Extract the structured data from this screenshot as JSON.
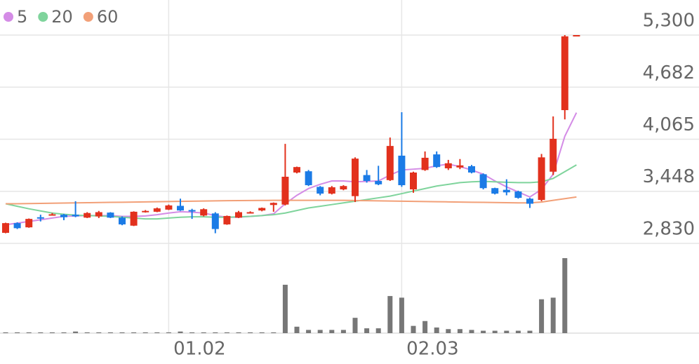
{
  "chart_data": {
    "type": "candlestick",
    "categories": [
      null,
      null,
      null,
      null,
      null,
      null,
      null,
      null,
      null,
      null,
      null,
      null,
      null,
      null,
      "01.02",
      null,
      null,
      null,
      null,
      null,
      null,
      null,
      null,
      null,
      null,
      null,
      null,
      null,
      null,
      null,
      null,
      null,
      null,
      null,
      "02.03",
      null,
      null,
      null,
      null,
      null,
      null,
      null,
      null,
      null,
      null,
      null,
      null,
      null,
      null,
      null
    ],
    "open": [
      2955,
      3070,
      3020,
      3140,
      3165,
      3170,
      3170,
      3135,
      3150,
      3195,
      3135,
      3040,
      3200,
      3205,
      3230,
      3275,
      3225,
      3160,
      3185,
      3055,
      3135,
      3190,
      3220,
      3285,
      3290,
      3670,
      3685,
      3500,
      3420,
      3470,
      3390,
      3640,
      3570,
      3580,
      3870,
      3470,
      3700,
      3885,
      3720,
      3730,
      3745,
      3650,
      3485,
      3465,
      3445,
      3360,
      3345,
      3680,
      4410,
      5285
    ],
    "high": [
      3075,
      3080,
      3125,
      3170,
      3190,
      3180,
      3330,
      3200,
      3215,
      3200,
      3150,
      3210,
      3225,
      3255,
      3290,
      3360,
      3240,
      3245,
      3200,
      3160,
      3215,
      3210,
      3255,
      3315,
      4010,
      3740,
      3700,
      3510,
      3510,
      3520,
      3850,
      3700,
      3750,
      4085,
      4385,
      3680,
      3920,
      3920,
      3820,
      3830,
      3760,
      3660,
      3490,
      3590,
      3455,
      3370,
      3890,
      4335,
      5300,
      5300
    ],
    "low": [
      2950,
      3000,
      3015,
      3090,
      3160,
      3105,
      3140,
      3130,
      3130,
      3130,
      3045,
      3035,
      3195,
      3200,
      3225,
      3215,
      3120,
      3150,
      2950,
      3050,
      3130,
      3185,
      3210,
      3205,
      3280,
      3660,
      3510,
      3400,
      3410,
      3460,
      3320,
      3550,
      3520,
      3570,
      3500,
      3430,
      3690,
      3725,
      3700,
      3710,
      3660,
      3470,
      3410,
      3400,
      3360,
      3250,
      3330,
      3640,
      4300,
      5285
    ],
    "close": [
      3070,
      3010,
      3120,
      3130,
      3175,
      3140,
      3150,
      3190,
      3200,
      3135,
      3055,
      3205,
      3215,
      3245,
      3280,
      3220,
      3215,
      3235,
      3000,
      3155,
      3200,
      3200,
      3250,
      3310,
      3620,
      3735,
      3520,
      3420,
      3495,
      3510,
      3835,
      3570,
      3530,
      3985,
      3520,
      3670,
      3845,
      3735,
      3780,
      3755,
      3670,
      3485,
      3420,
      3435,
      3370,
      3300,
      3850,
      4070,
      5285,
      5300
    ],
    "up_color": "#e2311d",
    "down_color": "#1b7be6",
    "moving_averages": [
      {
        "name": "5",
        "color": "#d48ce6",
        "values": [
          3050,
          3070,
          3090,
          3110,
          3130,
          3150,
          3155,
          3160,
          3160,
          3160,
          3150,
          3150,
          3155,
          3170,
          3190,
          3205,
          3200,
          3190,
          3160,
          3140,
          3140,
          3150,
          3160,
          3180,
          3300,
          3400,
          3480,
          3530,
          3570,
          3570,
          3560,
          3565,
          3570,
          3640,
          3700,
          3710,
          3720,
          3750,
          3770,
          3740,
          3700,
          3650,
          3570,
          3500,
          3440,
          3380,
          3470,
          3650,
          4100,
          4380
        ]
      },
      {
        "name": "20",
        "color": "#7fd49c",
        "values": [
          3300,
          3270,
          3240,
          3215,
          3190,
          3175,
          3165,
          3160,
          3155,
          3150,
          3140,
          3130,
          3120,
          3120,
          3130,
          3140,
          3145,
          3145,
          3140,
          3140,
          3145,
          3150,
          3160,
          3170,
          3190,
          3220,
          3250,
          3270,
          3290,
          3310,
          3330,
          3350,
          3370,
          3390,
          3420,
          3450,
          3480,
          3510,
          3530,
          3550,
          3560,
          3565,
          3560,
          3555,
          3550,
          3550,
          3560,
          3600,
          3680,
          3760
        ]
      },
      {
        "name": "60",
        "color": "#f2a078",
        "values": [
          3300,
          3300,
          3302,
          3304,
          3306,
          3308,
          3310,
          3312,
          3314,
          3316,
          3318,
          3320,
          3322,
          3324,
          3326,
          3328,
          3330,
          3332,
          3334,
          3336,
          3337,
          3338,
          3339,
          3340,
          3340,
          3340,
          3340,
          3340,
          3340,
          3340,
          3338,
          3336,
          3334,
          3332,
          3330,
          3328,
          3326,
          3324,
          3322,
          3320,
          3318,
          3316,
          3314,
          3312,
          3310,
          3310,
          3320,
          3340,
          3360,
          3380
        ]
      }
    ],
    "volume": [
      1,
      1,
      1,
      1,
      1,
      1,
      2,
      1,
      1,
      1,
      1,
      1,
      1,
      1,
      1,
      2,
      1,
      1,
      1,
      1,
      1,
      1,
      1,
      1,
      60,
      8,
      4,
      4,
      4,
      4,
      19,
      6,
      6,
      46,
      44,
      9,
      15,
      7,
      5,
      5,
      4,
      3,
      3,
      3,
      3,
      3,
      42,
      44,
      93,
      0
    ],
    "volume_color": "#777777",
    "volume_ylim": [
      0,
      100
    ],
    "ylim": [
      2830,
      5300
    ],
    "yticks": [
      {
        "value": 2830,
        "label": "2,830"
      },
      {
        "value": 3448,
        "label": "3,448"
      },
      {
        "value": 4065,
        "label": "4,065"
      },
      {
        "value": 4682,
        "label": "4,682"
      },
      {
        "value": 5300,
        "label": "5,300"
      }
    ],
    "grid": true
  }
}
